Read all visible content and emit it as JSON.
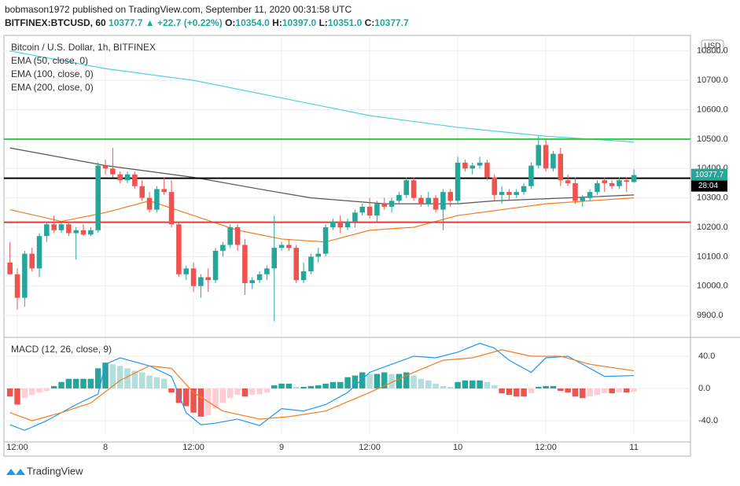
{
  "header": {
    "author_line": "bobmason1972 published on TradingView.com, September 11, 2020 00:31:58 UTC",
    "symbol": "BITFINEX:BTCUSD, 60",
    "last": "10377.7",
    "arrow": "▲",
    "change": "+22.7 (+0.22%)",
    "o_label": "O:",
    "o": "10354.0",
    "h_label": "H:",
    "h": "10397.0",
    "l_label": "L:",
    "l": "10351.0",
    "c_label": "C:",
    "c": "10377.7"
  },
  "footer": {
    "brand": "TradingView"
  },
  "chart_data": {
    "type": "candlestick",
    "title": "Bitcoin / U.S. Dollar, 1h, BITFINEX",
    "currency": "USD",
    "countdown": "28:04",
    "up_color": "#26a69a",
    "down_color": "#ef5350",
    "x": [
      -1,
      0,
      1,
      2,
      3,
      4,
      5,
      6,
      7,
      8,
      9,
      10,
      11,
      12,
      13,
      14,
      15,
      16,
      17,
      18,
      19,
      20,
      21,
      22,
      23,
      24,
      25,
      26,
      27,
      28,
      29,
      30,
      31,
      32,
      33,
      34,
      35,
      36,
      37,
      38,
      39,
      40,
      41,
      42,
      43,
      44,
      45,
      46,
      47,
      48,
      49,
      50,
      51,
      52,
      53,
      54,
      55,
      56,
      57,
      58,
      59,
      60,
      61,
      62,
      63,
      64,
      65,
      66,
      67,
      68,
      69,
      70,
      71,
      72,
      73,
      74,
      75,
      76,
      77,
      78,
      79,
      80,
      81,
      82,
      83,
      84
    ],
    "open": [
      10080,
      10040,
      9960,
      10110,
      10060,
      10170,
      10210,
      10190,
      10210,
      10180,
      10190,
      10175,
      10190,
      10410,
      10400,
      10380,
      10360,
      10380,
      10340,
      10300,
      10260,
      10330,
      10320,
      10210,
      10040,
      10060,
      10000,
      10030,
      10020,
      10120,
      10140,
      10200,
      10140,
      10010,
      10020,
      10040,
      10060,
      10130,
      10140,
      10130,
      10020,
      10050,
      10100,
      10110,
      10200,
      10220,
      10200,
      10220,
      10250,
      10270,
      10240,
      10280,
      10270,
      10290,
      10310,
      10360,
      10300,
      10280,
      10300,
      10260,
      10320,
      10290,
      10420,
      10400,
      10410,
      10420,
      10370,
      10310,
      10320,
      10310,
      10320,
      10340,
      10410,
      10480,
      10400,
      10450,
      10360,
      10350,
      10290,
      10300,
      10320,
      10360,
      10350,
      10340,
      10360,
      10354
    ],
    "high": [
      10150,
      10060,
      10120,
      10130,
      10180,
      10220,
      10240,
      10215,
      10220,
      10200,
      10210,
      10200,
      10420,
      10430,
      10470,
      10390,
      10390,
      10390,
      10360,
      10320,
      10340,
      10370,
      10360,
      10220,
      10070,
      10080,
      10040,
      10060,
      10130,
      10150,
      10210,
      10210,
      10160,
      10030,
      10050,
      10070,
      10240,
      10150,
      10160,
      10140,
      10080,
      10110,
      10130,
      10210,
      10230,
      10240,
      10230,
      10260,
      10280,
      10300,
      10290,
      10300,
      10300,
      10320,
      10370,
      10370,
      10310,
      10320,
      10310,
      10330,
      10330,
      10440,
      10430,
      10420,
      10440,
      10430,
      10380,
      10340,
      10330,
      10330,
      10350,
      10420,
      10510,
      10500,
      10460,
      10470,
      10380,
      10370,
      10310,
      10330,
      10360,
      10370,
      10360,
      10370,
      10370,
      10397
    ],
    "low": [
      10040,
      9920,
      9930,
      10050,
      10030,
      10150,
      10180,
      10180,
      10170,
      10090,
      10170,
      10170,
      10180,
      10380,
      10370,
      10350,
      10350,
      10330,
      10290,
      10250,
      10250,
      10310,
      10200,
      10030,
      10020,
      9980,
      9960,
      9980,
      10010,
      10100,
      10130,
      10120,
      9970,
      9990,
      10010,
      10020,
      9880,
      10120,
      10120,
      10010,
      10010,
      10040,
      10080,
      10100,
      10190,
      10180,
      10190,
      10200,
      10240,
      10230,
      10220,
      10260,
      10250,
      10280,
      10300,
      10290,
      10270,
      10270,
      10250,
      10190,
      10270,
      10280,
      10390,
      10380,
      10400,
      10360,
      10290,
      10280,
      10290,
      10300,
      10310,
      10330,
      10400,
      10390,
      10390,
      10340,
      10340,
      10280,
      10270,
      10290,
      10310,
      10320,
      10330,
      10330,
      10320,
      10351
    ],
    "close": [
      10040,
      9960,
      10110,
      10060,
      10170,
      10210,
      10190,
      10210,
      10180,
      10190,
      10175,
      10190,
      10410,
      10400,
      10380,
      10360,
      10380,
      10340,
      10300,
      10260,
      10330,
      10320,
      10210,
      10040,
      10060,
      10000,
      10030,
      10020,
      10120,
      10140,
      10200,
      10140,
      10010,
      10020,
      10040,
      10060,
      10130,
      10140,
      10130,
      10020,
      10050,
      10100,
      10110,
      10200,
      10220,
      10200,
      10220,
      10250,
      10270,
      10240,
      10280,
      10270,
      10290,
      10310,
      10360,
      10300,
      10280,
      10300,
      10260,
      10320,
      10290,
      10420,
      10400,
      10410,
      10420,
      10370,
      10310,
      10320,
      10310,
      10320,
      10340,
      10410,
      10480,
      10400,
      10450,
      10360,
      10350,
      10290,
      10300,
      10320,
      10350,
      10350,
      10340,
      10360,
      10355,
      10377.7
    ],
    "lines": [
      {
        "name": "EMA (50, close, 0)",
        "color": "#f57c1f",
        "x": [
          -1,
          6,
          12,
          18,
          24,
          30,
          36,
          42,
          48,
          54,
          60,
          66,
          72,
          78,
          84
        ],
        "values": [
          10260,
          10220,
          10250,
          10290,
          10240,
          10190,
          10160,
          10150,
          10190,
          10200,
          10240,
          10260,
          10280,
          10290,
          10300
        ]
      },
      {
        "name": "EMA (100, close, 0)",
        "color": "#555555",
        "x": [
          -1,
          12,
          24,
          33,
          40,
          50,
          60,
          65,
          75,
          84
        ],
        "values": [
          10470,
          10410,
          10370,
          10330,
          10300,
          10280,
          10280,
          10290,
          10300,
          10310
        ]
      },
      {
        "name": "EMA (200, close, 0)",
        "color": "#4dd0e1",
        "x": [
          -1,
          12,
          24,
          36,
          48,
          60,
          72,
          84
        ],
        "values": [
          10800,
          10740,
          10700,
          10640,
          10580,
          10540,
          10510,
          10490
        ]
      }
    ],
    "hlines": [
      {
        "value": 10500,
        "color": "#2ecc40"
      },
      {
        "value": 10367,
        "color": "#000000"
      },
      {
        "value": 10217,
        "color": "#e53935"
      }
    ],
    "xlim": [
      -2.36,
      91.7
    ],
    "xticks": [
      {
        "value": 0,
        "label": "12:00"
      },
      {
        "value": 12,
        "label": "8"
      },
      {
        "value": 24,
        "label": "12:00"
      },
      {
        "value": 36,
        "label": "9"
      },
      {
        "value": 48,
        "label": "12:00"
      },
      {
        "value": 60,
        "label": "10"
      },
      {
        "value": 72,
        "label": "12:00"
      },
      {
        "value": 84,
        "label": "11"
      }
    ],
    "ylim": [
      9828,
      10853
    ],
    "yticks": [
      {
        "value": 9900,
        "label": "9900.0"
      },
      {
        "value": 10000,
        "label": "10000.0"
      },
      {
        "value": 10100,
        "label": "10100.0"
      },
      {
        "value": 10200,
        "label": "10200.0"
      },
      {
        "value": 10300,
        "label": "10300.0"
      },
      {
        "value": 10400,
        "label": "10400.0"
      },
      {
        "value": 10500,
        "label": "10500.0"
      },
      {
        "value": 10600,
        "label": "10600.0"
      },
      {
        "value": 10700,
        "label": "10700.0"
      },
      {
        "value": 10800,
        "label": "10800.0"
      }
    ],
    "grid": true,
    "macd": {
      "title": "MACD (12, 26, close, 9)",
      "ylim": [
        -56.6,
        62.4
      ],
      "yticks": [
        {
          "value": -40,
          "label": "-40.0"
        },
        {
          "value": 0,
          "label": "0.0"
        },
        {
          "value": 40,
          "label": "40.0"
        }
      ],
      "hist_colors": [
        "#26a69a",
        "#b2dfdb",
        "#ef5350",
        "#ffcdd2"
      ],
      "histogram": [
        -10,
        -20,
        -12,
        -8,
        -5,
        -3,
        3,
        8,
        12,
        12,
        12,
        12,
        25,
        32,
        30,
        28,
        25,
        22,
        20,
        16,
        14,
        12,
        -5,
        -18,
        -22,
        -30,
        -35,
        -33,
        -25,
        -18,
        -12,
        -8,
        -10,
        -8,
        -7,
        -5,
        4,
        6,
        6,
        2,
        2,
        3,
        4,
        6,
        8,
        8,
        14,
        16,
        20,
        18,
        18,
        20,
        18,
        18,
        20,
        16,
        12,
        10,
        6,
        3,
        2,
        8,
        10,
        10,
        10,
        8,
        4,
        -6,
        -8,
        -10,
        -10,
        -6,
        2,
        3,
        3,
        -3,
        -5,
        -10,
        -12,
        -10,
        -8,
        -6,
        -6,
        -5,
        -5,
        -4
      ],
      "macd_line": {
        "color": "#2196f3",
        "x": [
          -1,
          1,
          4,
          8,
          11,
          12,
          14,
          18,
          21,
          23,
          25,
          27,
          30,
          33,
          36,
          39,
          42,
          45,
          48,
          51,
          54,
          57,
          60,
          63,
          65,
          67,
          70,
          72,
          75,
          77,
          80,
          84
        ],
        "values": [
          -45,
          -52,
          -40,
          -20,
          -7,
          30,
          38,
          28,
          15,
          -30,
          -45,
          -43,
          -38,
          -46,
          -25,
          -28,
          -20,
          -5,
          20,
          30,
          40,
          38,
          45,
          56,
          50,
          35,
          20,
          38,
          40,
          30,
          15,
          16
        ]
      },
      "signal_line": {
        "color": "#f57c1f",
        "x": [
          -1,
          2,
          6,
          10,
          14,
          18,
          21,
          24,
          28,
          33,
          37,
          42,
          48,
          54,
          58,
          62,
          66,
          70,
          74,
          78,
          84
        ],
        "values": [
          -30,
          -40,
          -30,
          -18,
          10,
          28,
          25,
          -5,
          -28,
          -38,
          -35,
          -28,
          -5,
          20,
          35,
          38,
          48,
          40,
          40,
          30,
          22
        ]
      }
    }
  }
}
